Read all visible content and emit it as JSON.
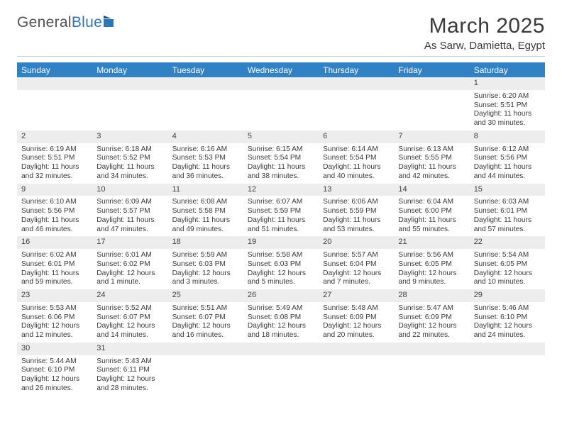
{
  "brand": {
    "name1": "General",
    "name2": "Blue"
  },
  "title": "March 2025",
  "location": "As Sarw, Damietta, Egypt",
  "colors": {
    "header_bg": "#3082c5",
    "header_fg": "#ffffff",
    "daynum_bg": "#ededed",
    "text": "#3a3a3a",
    "rule": "#cfcfcf",
    "brand_blue": "#2f76b8"
  },
  "weekdays": [
    "Sunday",
    "Monday",
    "Tuesday",
    "Wednesday",
    "Thursday",
    "Friday",
    "Saturday"
  ],
  "weeks": [
    [
      null,
      null,
      null,
      null,
      null,
      null,
      {
        "n": "1",
        "sr": "6:20 AM",
        "ss": "5:51 PM",
        "dl": "11 hours and 30 minutes."
      }
    ],
    [
      {
        "n": "2",
        "sr": "6:19 AM",
        "ss": "5:51 PM",
        "dl": "11 hours and 32 minutes."
      },
      {
        "n": "3",
        "sr": "6:18 AM",
        "ss": "5:52 PM",
        "dl": "11 hours and 34 minutes."
      },
      {
        "n": "4",
        "sr": "6:16 AM",
        "ss": "5:53 PM",
        "dl": "11 hours and 36 minutes."
      },
      {
        "n": "5",
        "sr": "6:15 AM",
        "ss": "5:54 PM",
        "dl": "11 hours and 38 minutes."
      },
      {
        "n": "6",
        "sr": "6:14 AM",
        "ss": "5:54 PM",
        "dl": "11 hours and 40 minutes."
      },
      {
        "n": "7",
        "sr": "6:13 AM",
        "ss": "5:55 PM",
        "dl": "11 hours and 42 minutes."
      },
      {
        "n": "8",
        "sr": "6:12 AM",
        "ss": "5:56 PM",
        "dl": "11 hours and 44 minutes."
      }
    ],
    [
      {
        "n": "9",
        "sr": "6:10 AM",
        "ss": "5:56 PM",
        "dl": "11 hours and 46 minutes."
      },
      {
        "n": "10",
        "sr": "6:09 AM",
        "ss": "5:57 PM",
        "dl": "11 hours and 47 minutes."
      },
      {
        "n": "11",
        "sr": "6:08 AM",
        "ss": "5:58 PM",
        "dl": "11 hours and 49 minutes."
      },
      {
        "n": "12",
        "sr": "6:07 AM",
        "ss": "5:59 PM",
        "dl": "11 hours and 51 minutes."
      },
      {
        "n": "13",
        "sr": "6:06 AM",
        "ss": "5:59 PM",
        "dl": "11 hours and 53 minutes."
      },
      {
        "n": "14",
        "sr": "6:04 AM",
        "ss": "6:00 PM",
        "dl": "11 hours and 55 minutes."
      },
      {
        "n": "15",
        "sr": "6:03 AM",
        "ss": "6:01 PM",
        "dl": "11 hours and 57 minutes."
      }
    ],
    [
      {
        "n": "16",
        "sr": "6:02 AM",
        "ss": "6:01 PM",
        "dl": "11 hours and 59 minutes."
      },
      {
        "n": "17",
        "sr": "6:01 AM",
        "ss": "6:02 PM",
        "dl": "12 hours and 1 minute."
      },
      {
        "n": "18",
        "sr": "5:59 AM",
        "ss": "6:03 PM",
        "dl": "12 hours and 3 minutes."
      },
      {
        "n": "19",
        "sr": "5:58 AM",
        "ss": "6:03 PM",
        "dl": "12 hours and 5 minutes."
      },
      {
        "n": "20",
        "sr": "5:57 AM",
        "ss": "6:04 PM",
        "dl": "12 hours and 7 minutes."
      },
      {
        "n": "21",
        "sr": "5:56 AM",
        "ss": "6:05 PM",
        "dl": "12 hours and 9 minutes."
      },
      {
        "n": "22",
        "sr": "5:54 AM",
        "ss": "6:05 PM",
        "dl": "12 hours and 10 minutes."
      }
    ],
    [
      {
        "n": "23",
        "sr": "5:53 AM",
        "ss": "6:06 PM",
        "dl": "12 hours and 12 minutes."
      },
      {
        "n": "24",
        "sr": "5:52 AM",
        "ss": "6:07 PM",
        "dl": "12 hours and 14 minutes."
      },
      {
        "n": "25",
        "sr": "5:51 AM",
        "ss": "6:07 PM",
        "dl": "12 hours and 16 minutes."
      },
      {
        "n": "26",
        "sr": "5:49 AM",
        "ss": "6:08 PM",
        "dl": "12 hours and 18 minutes."
      },
      {
        "n": "27",
        "sr": "5:48 AM",
        "ss": "6:09 PM",
        "dl": "12 hours and 20 minutes."
      },
      {
        "n": "28",
        "sr": "5:47 AM",
        "ss": "6:09 PM",
        "dl": "12 hours and 22 minutes."
      },
      {
        "n": "29",
        "sr": "5:46 AM",
        "ss": "6:10 PM",
        "dl": "12 hours and 24 minutes."
      }
    ],
    [
      {
        "n": "30",
        "sr": "5:44 AM",
        "ss": "6:10 PM",
        "dl": "12 hours and 26 minutes."
      },
      {
        "n": "31",
        "sr": "5:43 AM",
        "ss": "6:11 PM",
        "dl": "12 hours and 28 minutes."
      },
      null,
      null,
      null,
      null,
      null
    ]
  ],
  "labels": {
    "sunrise": "Sunrise:",
    "sunset": "Sunset:",
    "daylight": "Daylight:"
  }
}
